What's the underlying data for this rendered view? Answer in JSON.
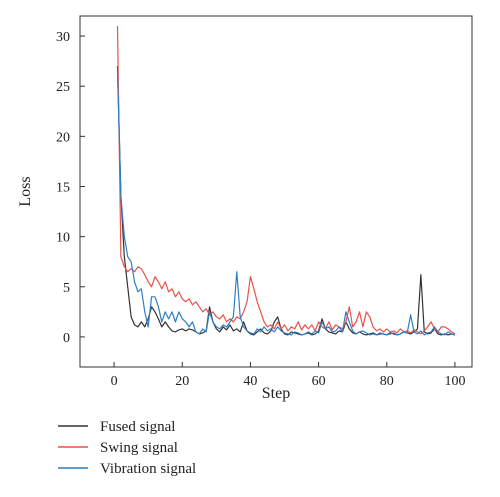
{
  "chart_data": {
    "type": "line",
    "title": "",
    "xlabel": "Step",
    "ylabel": "Loss",
    "xlim": [
      -10,
      105
    ],
    "ylim": [
      -3,
      32
    ],
    "x_ticks": [
      0,
      20,
      40,
      60,
      80,
      100
    ],
    "y_ticks": [
      0,
      5,
      10,
      15,
      20,
      25,
      30
    ],
    "grid": false,
    "legend_position": "bottom-left-outside",
    "series": [
      {
        "name": "Fused signal",
        "color": "#333333",
        "x": [
          1,
          2,
          3,
          4,
          5,
          6,
          7,
          8,
          9,
          10,
          11,
          12,
          13,
          14,
          15,
          16,
          17,
          18,
          19,
          20,
          21,
          22,
          23,
          24,
          25,
          26,
          27,
          28,
          29,
          30,
          31,
          32,
          33,
          34,
          35,
          36,
          37,
          38,
          39,
          40,
          41,
          42,
          43,
          44,
          45,
          46,
          47,
          48,
          49,
          50,
          51,
          52,
          53,
          54,
          55,
          56,
          57,
          58,
          59,
          60,
          61,
          62,
          63,
          64,
          65,
          66,
          67,
          68,
          69,
          70,
          71,
          72,
          73,
          74,
          75,
          76,
          77,
          78,
          79,
          80,
          81,
          82,
          83,
          84,
          85,
          86,
          87,
          88,
          89,
          90,
          91,
          92,
          93,
          94,
          95,
          96,
          97,
          98,
          99,
          100
        ],
        "values": [
          27,
          14,
          8,
          5,
          2,
          1.2,
          1,
          1.5,
          1,
          1.8,
          3,
          2.5,
          1.8,
          1,
          1.5,
          1,
          0.6,
          0.5,
          0.7,
          0.8,
          0.6,
          0.8,
          0.7,
          0.5,
          0.3,
          0.4,
          0.6,
          3,
          1.5,
          0.8,
          0.5,
          1,
          0.7,
          1.2,
          0.6,
          0.8,
          0.5,
          1.5,
          0.6,
          0.3,
          0.2,
          0.5,
          0.8,
          0.4,
          0.3,
          0.6,
          1.5,
          2,
          0.8,
          0.3,
          0.2,
          0.5,
          0.4,
          0.3,
          0.2,
          0.3,
          0.4,
          0.2,
          0.3,
          0.6,
          1.8,
          0.8,
          0.5,
          0.4,
          0.3,
          0.6,
          0.5,
          1.5,
          0.8,
          0.4,
          0.3,
          0.5,
          0.3,
          0.2,
          0.3,
          0.4,
          0.2,
          0.3,
          0.3,
          0.2,
          0.4,
          0.3,
          0.2,
          0.3,
          0.5,
          0.4,
          0.3,
          0.5,
          0.8,
          6.2,
          0.5,
          0.3,
          0.4,
          0.8,
          0.3,
          0.2,
          0.3,
          0.2,
          0.3,
          0.2
        ]
      },
      {
        "name": "Swing signal",
        "color": "#e8524a",
        "x": [
          1,
          2,
          3,
          4,
          5,
          6,
          7,
          8,
          9,
          10,
          11,
          12,
          13,
          14,
          15,
          16,
          17,
          18,
          19,
          20,
          21,
          22,
          23,
          24,
          25,
          26,
          27,
          28,
          29,
          30,
          31,
          32,
          33,
          34,
          35,
          36,
          37,
          38,
          39,
          40,
          41,
          42,
          43,
          44,
          45,
          46,
          47,
          48,
          49,
          50,
          51,
          52,
          53,
          54,
          55,
          56,
          57,
          58,
          59,
          60,
          61,
          62,
          63,
          64,
          65,
          66,
          67,
          68,
          69,
          70,
          71,
          72,
          73,
          74,
          75,
          76,
          77,
          78,
          79,
          80,
          81,
          82,
          83,
          84,
          85,
          86,
          87,
          88,
          89,
          90,
          91,
          92,
          93,
          94,
          95,
          96,
          97,
          98,
          99,
          100
        ],
        "values": [
          31,
          8,
          7,
          6.5,
          6.8,
          6.5,
          7,
          6.8,
          6.2,
          5.5,
          5,
          6,
          5.5,
          4.8,
          5.5,
          4.5,
          4.8,
          4,
          4.5,
          3.8,
          3.5,
          3.8,
          3.2,
          3.5,
          3,
          2.5,
          2.8,
          2.2,
          2.5,
          2,
          1.8,
          2.2,
          1.5,
          1.8,
          1.5,
          2,
          1.8,
          2.5,
          3.5,
          6,
          4.8,
          3.5,
          2.5,
          1.5,
          1,
          1.2,
          0.8,
          1.5,
          0.8,
          1.2,
          0.6,
          1,
          0.8,
          1.5,
          0.7,
          1.2,
          0.8,
          1.2,
          0.6,
          1.5,
          1,
          0.8,
          1.5,
          0.7,
          1.2,
          1,
          0.8,
          1.5,
          3,
          1,
          1.5,
          2.5,
          1,
          2.5,
          2,
          1,
          0.6,
          0.8,
          0.5,
          0.8,
          0.5,
          0.6,
          0.4,
          0.8,
          0.5,
          0.6,
          0.4,
          0.7,
          0.5,
          0.3,
          0.6,
          1,
          1.5,
          0.8,
          0.5,
          1,
          1,
          0.8,
          0.5,
          0.3
        ]
      },
      {
        "name": "Vibration signal",
        "color": "#2e7fc6",
        "x": [
          1,
          2,
          3,
          4,
          5,
          6,
          7,
          8,
          9,
          10,
          11,
          12,
          13,
          14,
          15,
          16,
          17,
          18,
          19,
          20,
          21,
          22,
          23,
          24,
          25,
          26,
          27,
          28,
          29,
          30,
          31,
          32,
          33,
          34,
          35,
          36,
          37,
          38,
          39,
          40,
          41,
          42,
          43,
          44,
          45,
          46,
          47,
          48,
          49,
          50,
          51,
          52,
          53,
          54,
          55,
          56,
          57,
          58,
          59,
          60,
          61,
          62,
          63,
          64,
          65,
          66,
          67,
          68,
          69,
          70,
          71,
          72,
          73,
          74,
          75,
          76,
          77,
          78,
          79,
          80,
          81,
          82,
          83,
          84,
          85,
          86,
          87,
          88,
          89,
          90,
          91,
          92,
          93,
          94,
          95,
          96,
          97,
          98,
          99,
          100
        ],
        "values": [
          26.5,
          14,
          10,
          8,
          7.5,
          5.5,
          4.5,
          4.8,
          2.5,
          1,
          4,
          4,
          3,
          1.5,
          2.5,
          1.8,
          2.5,
          1.5,
          2.5,
          1.8,
          1.5,
          1,
          1.5,
          0.5,
          0.3,
          0.8,
          0.5,
          2.5,
          1.5,
          1,
          0.8,
          1.2,
          1,
          1.5,
          2,
          6.5,
          2,
          1,
          0.6,
          0.4,
          0.3,
          0.8,
          0.5,
          1,
          0.6,
          0.8,
          0.5,
          1,
          0.6,
          0.4,
          0.3,
          0.2,
          0.5,
          0.4,
          0.2,
          0.3,
          0.5,
          0.3,
          0.6,
          0.4,
          1.5,
          0.8,
          1,
          0.5,
          0.6,
          1,
          0.5,
          2.5,
          1.5,
          0.6,
          0.3,
          0.5,
          0.6,
          0.4,
          0.2,
          0.3,
          0.2,
          0.4,
          0.3,
          0.2,
          0.3,
          0.4,
          0.2,
          0.3,
          0.5,
          0.4,
          2.2,
          0.5,
          0.3,
          0.6,
          0.2,
          0.4,
          0.5,
          1,
          0.5,
          0.3,
          0.2,
          0.5,
          0.3,
          0.2
        ]
      }
    ]
  }
}
